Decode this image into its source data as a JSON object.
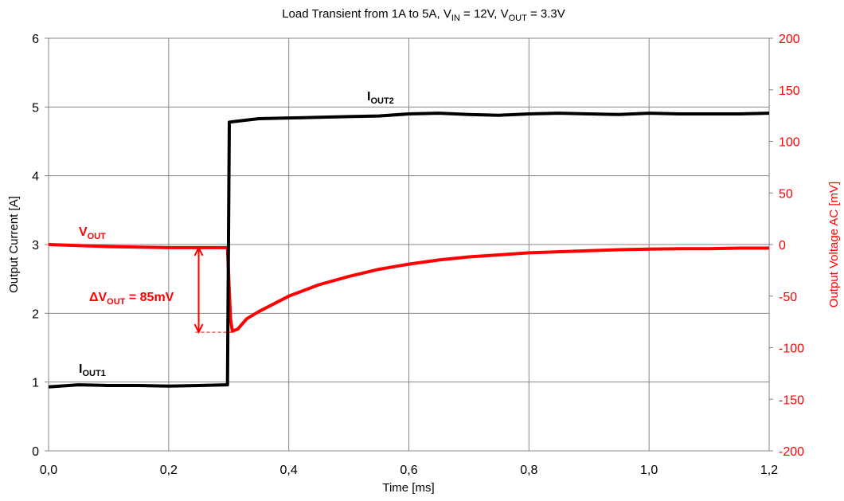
{
  "chart_data": {
    "type": "line",
    "title": {
      "prefix": "Load Transient from 1A to 5A, V",
      "vin_sub": "IN",
      "vin_value": " = 12V, V",
      "vout_sub": "OUT",
      "vout_value": " = 3.3V"
    },
    "xlabel": "Time  [ms]",
    "ylabel_left": "Output Current  [A]",
    "ylabel_right": "Output Voltage AC  [mV]",
    "xlim": [
      0,
      1.2
    ],
    "ylim_left": [
      0,
      6
    ],
    "ylim_right": [
      -200,
      200
    ],
    "x_ticks": [
      "0,0",
      "0,2",
      "0,4",
      "0,6",
      "0,8",
      "1,0",
      "1,2"
    ],
    "y_left_ticks": [
      "0",
      "1",
      "2",
      "3",
      "4",
      "5",
      "6"
    ],
    "y_right_ticks": [
      "-200",
      "-150",
      "-100",
      "-50",
      "0",
      "50",
      "100",
      "150",
      "200"
    ],
    "grid": true,
    "colors": {
      "current": "#000000",
      "voltage": "#ff0000",
      "grid": "#868686",
      "frame": "#868686"
    },
    "series": [
      {
        "axis": "left",
        "color": "#000000",
        "label_main": "I",
        "label_sub": "OUT1",
        "label_main_2": "I",
        "label_sub_2": "OUT2",
        "points": [
          [
            0.0,
            0.93
          ],
          [
            0.05,
            0.96
          ],
          [
            0.1,
            0.95
          ],
          [
            0.15,
            0.95
          ],
          [
            0.2,
            0.94
          ],
          [
            0.25,
            0.95
          ],
          [
            0.298,
            0.96
          ],
          [
            0.301,
            4.78
          ],
          [
            0.32,
            4.8
          ],
          [
            0.35,
            4.83
          ],
          [
            0.4,
            4.84
          ],
          [
            0.45,
            4.85
          ],
          [
            0.5,
            4.86
          ],
          [
            0.55,
            4.87
          ],
          [
            0.6,
            4.9
          ],
          [
            0.65,
            4.91
          ],
          [
            0.7,
            4.89
          ],
          [
            0.75,
            4.88
          ],
          [
            0.8,
            4.9
          ],
          [
            0.85,
            4.91
          ],
          [
            0.9,
            4.9
          ],
          [
            0.95,
            4.89
          ],
          [
            1.0,
            4.91
          ],
          [
            1.05,
            4.9
          ],
          [
            1.1,
            4.9
          ],
          [
            1.15,
            4.9
          ],
          [
            1.2,
            4.91
          ]
        ]
      },
      {
        "axis": "right",
        "color": "#ff0000",
        "label_main": "V",
        "label_sub": "OUT",
        "points": [
          [
            0.0,
            0
          ],
          [
            0.1,
            -2
          ],
          [
            0.2,
            -3
          ],
          [
            0.298,
            -3
          ],
          [
            0.303,
            -72
          ],
          [
            0.306,
            -84
          ],
          [
            0.315,
            -82
          ],
          [
            0.33,
            -72
          ],
          [
            0.35,
            -65
          ],
          [
            0.4,
            -50
          ],
          [
            0.45,
            -39
          ],
          [
            0.5,
            -31
          ],
          [
            0.55,
            -24
          ],
          [
            0.6,
            -19
          ],
          [
            0.65,
            -15
          ],
          [
            0.7,
            -12
          ],
          [
            0.75,
            -10
          ],
          [
            0.8,
            -8
          ],
          [
            0.85,
            -7
          ],
          [
            0.9,
            -6
          ],
          [
            0.95,
            -5
          ],
          [
            1.0,
            -4.5
          ],
          [
            1.05,
            -4
          ],
          [
            1.1,
            -4
          ],
          [
            1.15,
            -3.5
          ],
          [
            1.2,
            -3.5
          ]
        ]
      }
    ],
    "annotation": {
      "delta": "ΔV",
      "sub": "OUT",
      "value": " = 85mV",
      "x": 0.25,
      "y_top": -3,
      "y_bottom": -85
    }
  }
}
